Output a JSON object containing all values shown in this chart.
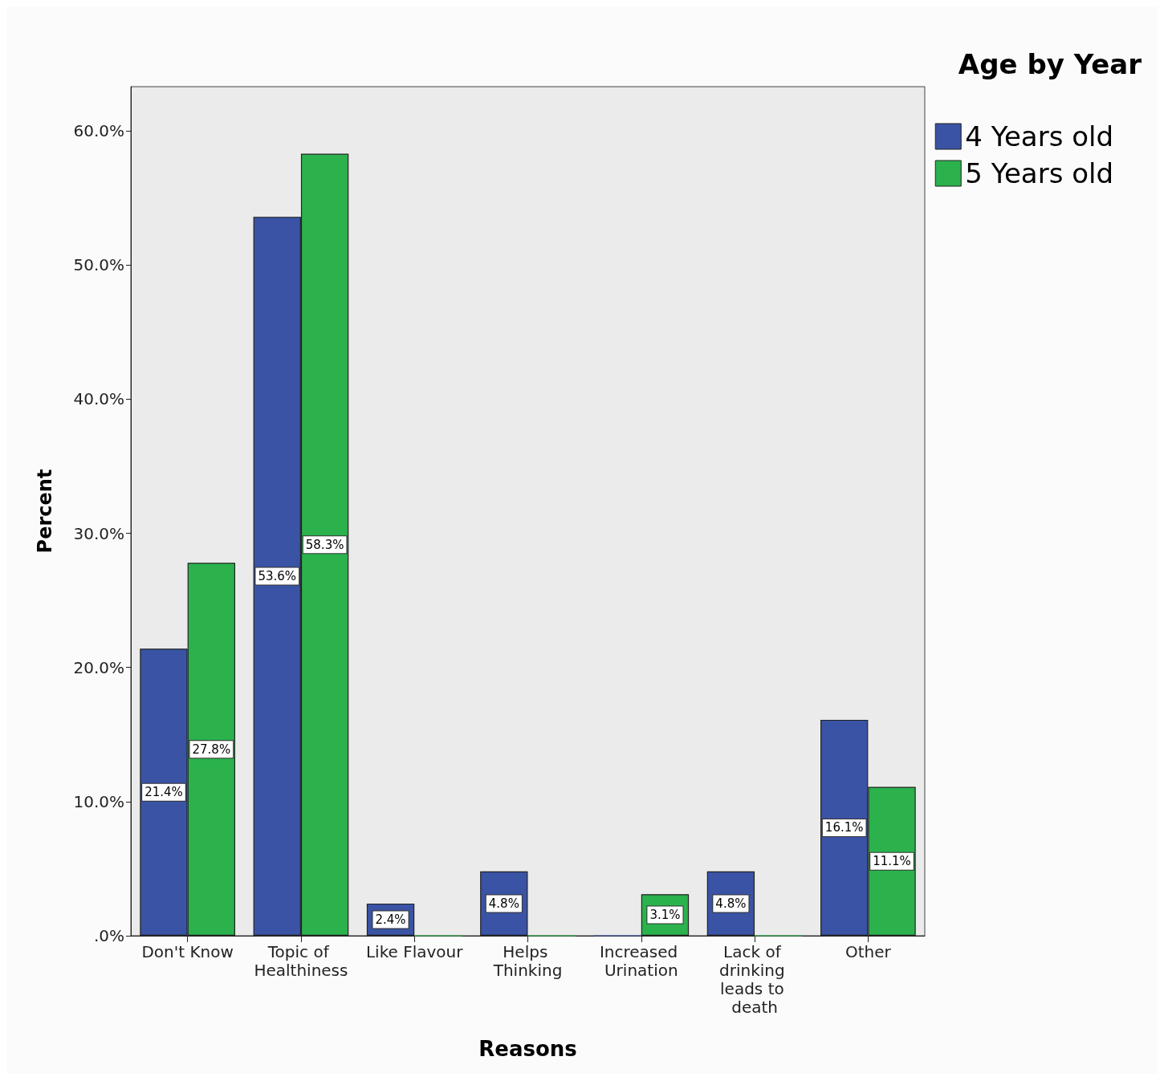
{
  "chart_data": {
    "type": "bar",
    "categories": [
      "Don't Know",
      "Topic of Healthiness",
      "Like Flavour",
      "Helps Thinking",
      "Increased Urination",
      "Lack of drinking leads to death",
      "Other"
    ],
    "series": [
      {
        "name": "4 Years old",
        "color": "#3a53a4",
        "values": [
          21.4,
          53.6,
          2.4,
          4.8,
          0,
          4.8,
          16.1
        ],
        "value_labels": [
          "21.4%",
          "53.6%",
          "2.4%",
          "4.8%",
          null,
          "4.8%",
          "16.1%"
        ]
      },
      {
        "name": "5 Years old",
        "color": "#2bb24c",
        "values": [
          27.8,
          58.3,
          0,
          0,
          3.1,
          0,
          11.1
        ],
        "value_labels": [
          "27.8%",
          "58.3%",
          null,
          null,
          "3.1%",
          null,
          "11.1%"
        ]
      }
    ],
    "xlabel": "Reasons",
    "ylabel": "Percent",
    "legend_title": "Age by Year",
    "ylim": [
      0,
      63.3
    ],
    "yticks": [
      {
        "value": 0,
        "label": ".0%"
      },
      {
        "value": 10,
        "label": "10.0%"
      },
      {
        "value": 20,
        "label": "20.0%"
      },
      {
        "value": 30,
        "label": "30.0%"
      },
      {
        "value": 40,
        "label": "40.0%"
      },
      {
        "value": 50,
        "label": "50.0%"
      },
      {
        "value": 60,
        "label": "60.0%"
      }
    ],
    "grid": false,
    "legend": "top right"
  }
}
